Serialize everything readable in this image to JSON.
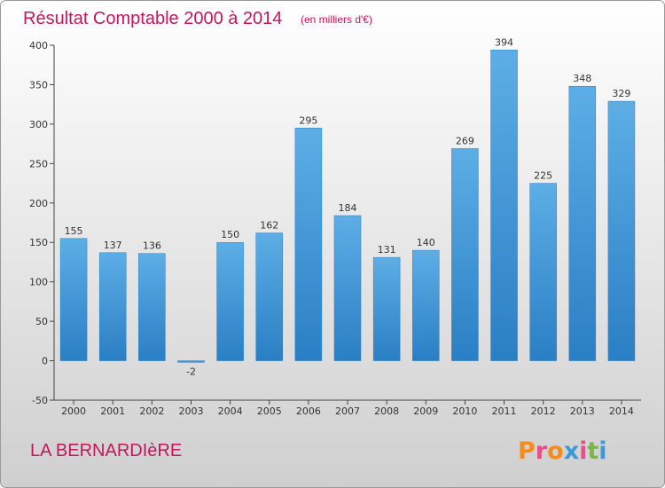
{
  "chart_data": {
    "type": "bar",
    "title": "Résultat Comptable 2000 à 2014",
    "subtitle": "(en milliers d'€)",
    "categories": [
      "2000",
      "2001",
      "2002",
      "2003",
      "2004",
      "2005",
      "2006",
      "2007",
      "2008",
      "2009",
      "2010",
      "2011",
      "2012",
      "2013",
      "2014"
    ],
    "values": [
      155,
      137,
      136,
      -2,
      150,
      162,
      295,
      184,
      131,
      140,
      269,
      394,
      225,
      348,
      329
    ],
    "ylim": [
      -50,
      400
    ],
    "yticks": [
      -50,
      0,
      50,
      100,
      150,
      200,
      250,
      300,
      350,
      400
    ],
    "xlabel": "",
    "ylabel": "",
    "grid": false,
    "legend": "none"
  },
  "footer": {
    "commune": "LA BERNARDIèRE",
    "brand": "Proxiti"
  },
  "colors": {
    "title": "#c2185b",
    "bar_light": "#5daee6",
    "bar_dark": "#2a7fc4",
    "axis": "#444444",
    "brand_letters": [
      "#f28c1e",
      "#e84f8a",
      "#f28c1e",
      "#3a9ad9",
      "#e84f8a",
      "#7ab648",
      "#3a9ad9"
    ]
  }
}
